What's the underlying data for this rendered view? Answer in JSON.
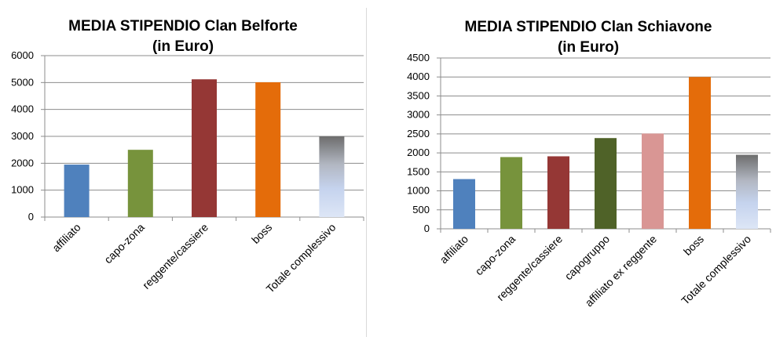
{
  "chart_data": [
    {
      "type": "bar",
      "title_lines": [
        "MEDIA STIPENDIO Clan Belforte",
        "(in Euro)"
      ],
      "categories": [
        "affiliato",
        "capo-zona",
        "reggente/cassiere",
        "boss",
        "Totale complessivo"
      ],
      "values": [
        1950,
        2500,
        5120,
        5010,
        3000
      ],
      "colors": [
        "#4f81bd",
        "#77933c",
        "#953735",
        "#e46c0a",
        "gradient"
      ],
      "ylim": [
        0,
        6000
      ],
      "yticks": [
        "0",
        "1000",
        "2000",
        "3000",
        "4000",
        "5000",
        "6000"
      ],
      "ytick_values": [
        0,
        1000,
        2000,
        3000,
        4000,
        5000,
        6000
      ],
      "grid": true
    },
    {
      "type": "bar",
      "title_lines": [
        "MEDIA STIPENDIO Clan Schiavone",
        "(in Euro)"
      ],
      "categories": [
        "affiliato",
        "capo-zona",
        "reggente/cassiere",
        "capogruppo",
        "affiliato ex reggente",
        "boss",
        "Totale complessivo"
      ],
      "values": [
        1310,
        1890,
        1910,
        2390,
        2510,
        4000,
        1950
      ],
      "colors": [
        "#4f81bd",
        "#77933c",
        "#953735",
        "#4f6228",
        "#d99694",
        "#e46c0a",
        "gradient"
      ],
      "ylim": [
        0,
        4500
      ],
      "yticks": [
        "0",
        "500",
        "1000",
        "1500",
        "2000",
        "2500",
        "3000",
        "3500",
        "4000",
        "4500"
      ],
      "ytick_values": [
        0,
        500,
        1000,
        1500,
        2000,
        2500,
        3000,
        3500,
        4000,
        4500
      ],
      "grid": true
    }
  ]
}
